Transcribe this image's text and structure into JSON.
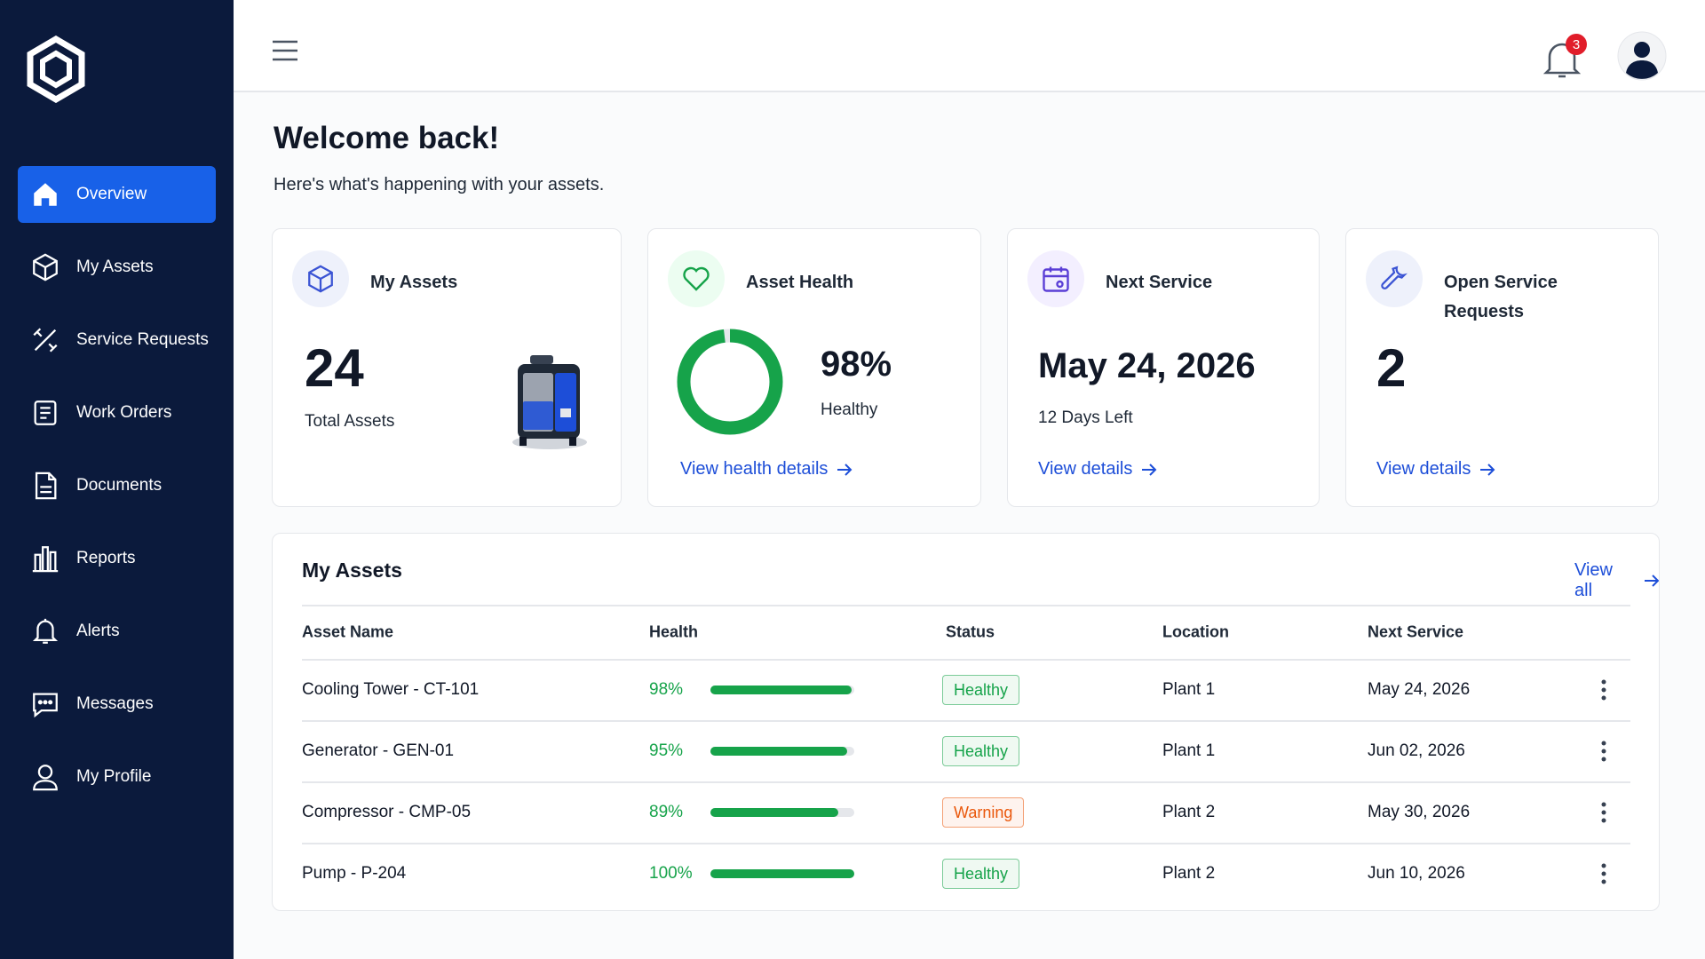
{
  "sidebar": {
    "nav": [
      "Overview",
      "My Assets",
      "Service Requests",
      "Work Orders",
      "Documents",
      "Reports",
      "Alerts",
      "Messages",
      "My Profile"
    ],
    "active": 0
  },
  "header": {
    "notification_count": 3
  },
  "welcome": {
    "title": "Welcome back!",
    "subtitle": "Here's what's happening with your assets."
  },
  "cards": {
    "my_assets": {
      "title": "My Assets",
      "value": 24,
      "label": "Total Assets"
    },
    "asset_health": {
      "title": "Asset Health",
      "value": 98,
      "value_label": "98%",
      "status": "Healthy",
      "link": "View health details",
      "color": "#16a34a"
    },
    "next_service": {
      "title": "Next Service",
      "date": "May 24, 2026",
      "days_left": "12 Days Left",
      "link": "View details"
    },
    "open_requests": {
      "title": "Open Service Requests",
      "value": 2,
      "link": "View details"
    }
  },
  "table": {
    "title": "My Assets",
    "view_all": "View all",
    "columns": [
      "Asset Name",
      "Health",
      "Status",
      "Location",
      "Next Service"
    ],
    "rows": [
      {
        "name": "Cooling Tower - CT-101",
        "health": 98,
        "health_label": "98%",
        "status": "Healthy",
        "status_color": "#16a34a",
        "location": "Plant 1",
        "next_service": "May 24, 2026"
      },
      {
        "name": "Generator - GEN-01",
        "health": 95,
        "health_label": "95%",
        "status": "Healthy",
        "status_color": "#16a34a",
        "location": "Plant 1",
        "next_service": "Jun 02, 2026"
      },
      {
        "name": "Compressor - CMP-05",
        "health": 89,
        "health_label": "89%",
        "status": "Warning",
        "status_color": "#ea580c",
        "location": "Plant 2",
        "next_service": "May 30, 2026"
      },
      {
        "name": "Pump - P-204",
        "health": 100,
        "health_label": "100%",
        "status": "Healthy",
        "status_color": "#16a34a",
        "location": "Plant 2",
        "next_service": "Jun 10, 2026"
      }
    ]
  }
}
